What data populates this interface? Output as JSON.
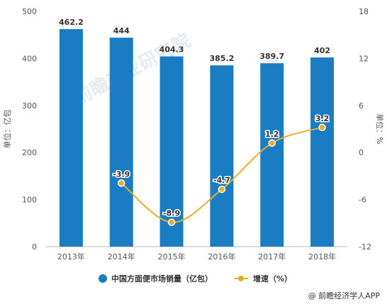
{
  "chart_data": {
    "type": "bar",
    "categories": [
      "2013年",
      "2014年",
      "2015年",
      "2016年",
      "2017年",
      "2018年"
    ],
    "series": [
      {
        "name": "中国方面便市场销量（亿包）",
        "type": "bar",
        "axis": "left",
        "values": [
          462.2,
          444,
          404.3,
          385.2,
          389.7,
          402
        ],
        "labels": [
          "462.2",
          "444",
          "404.3",
          "385.2",
          "389.7",
          "402"
        ],
        "color": "#1a7dc4"
      },
      {
        "name": "增速（%）",
        "type": "line",
        "axis": "right",
        "values": [
          null,
          -3.9,
          -8.9,
          -4.7,
          1.2,
          3.2
        ],
        "labels": [
          "",
          "-3.9",
          "-8.9",
          "-4.7",
          "1.2",
          "3.2"
        ],
        "color": "#e8ad2c"
      }
    ],
    "ylabel": "单位：亿包",
    "y2label": "单位：%",
    "ylim": [
      0,
      500
    ],
    "yticks": [
      0,
      100,
      200,
      300,
      400,
      500
    ],
    "y2lim": [
      -12,
      18
    ],
    "y2ticks": [
      -12,
      -6,
      0,
      6,
      12,
      18
    ],
    "grid": false,
    "legend_position": "bottom"
  },
  "watermark": "前瞻产业研究院",
  "credit": "@ 前瞻经济学人APP"
}
